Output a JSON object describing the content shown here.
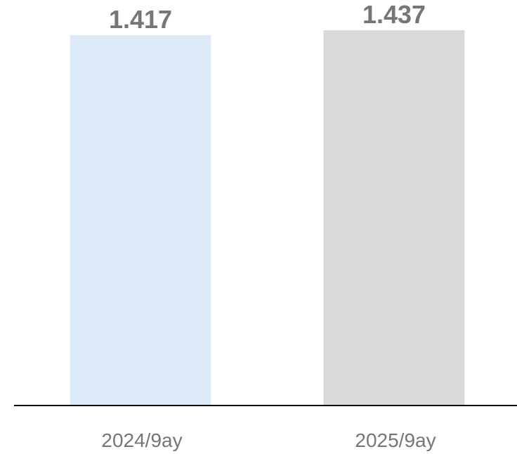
{
  "chart_data": {
    "type": "bar",
    "categories": [
      "2024/9ay",
      "2025/9ay"
    ],
    "values": [
      1.417,
      1.437
    ],
    "value_labels": [
      "1.417",
      "1.437"
    ],
    "colors": [
      "#dce9f6",
      "#d9d9d9"
    ],
    "axis_color": "#000000",
    "label_color": "#767676",
    "grid": false,
    "legend": "none"
  }
}
